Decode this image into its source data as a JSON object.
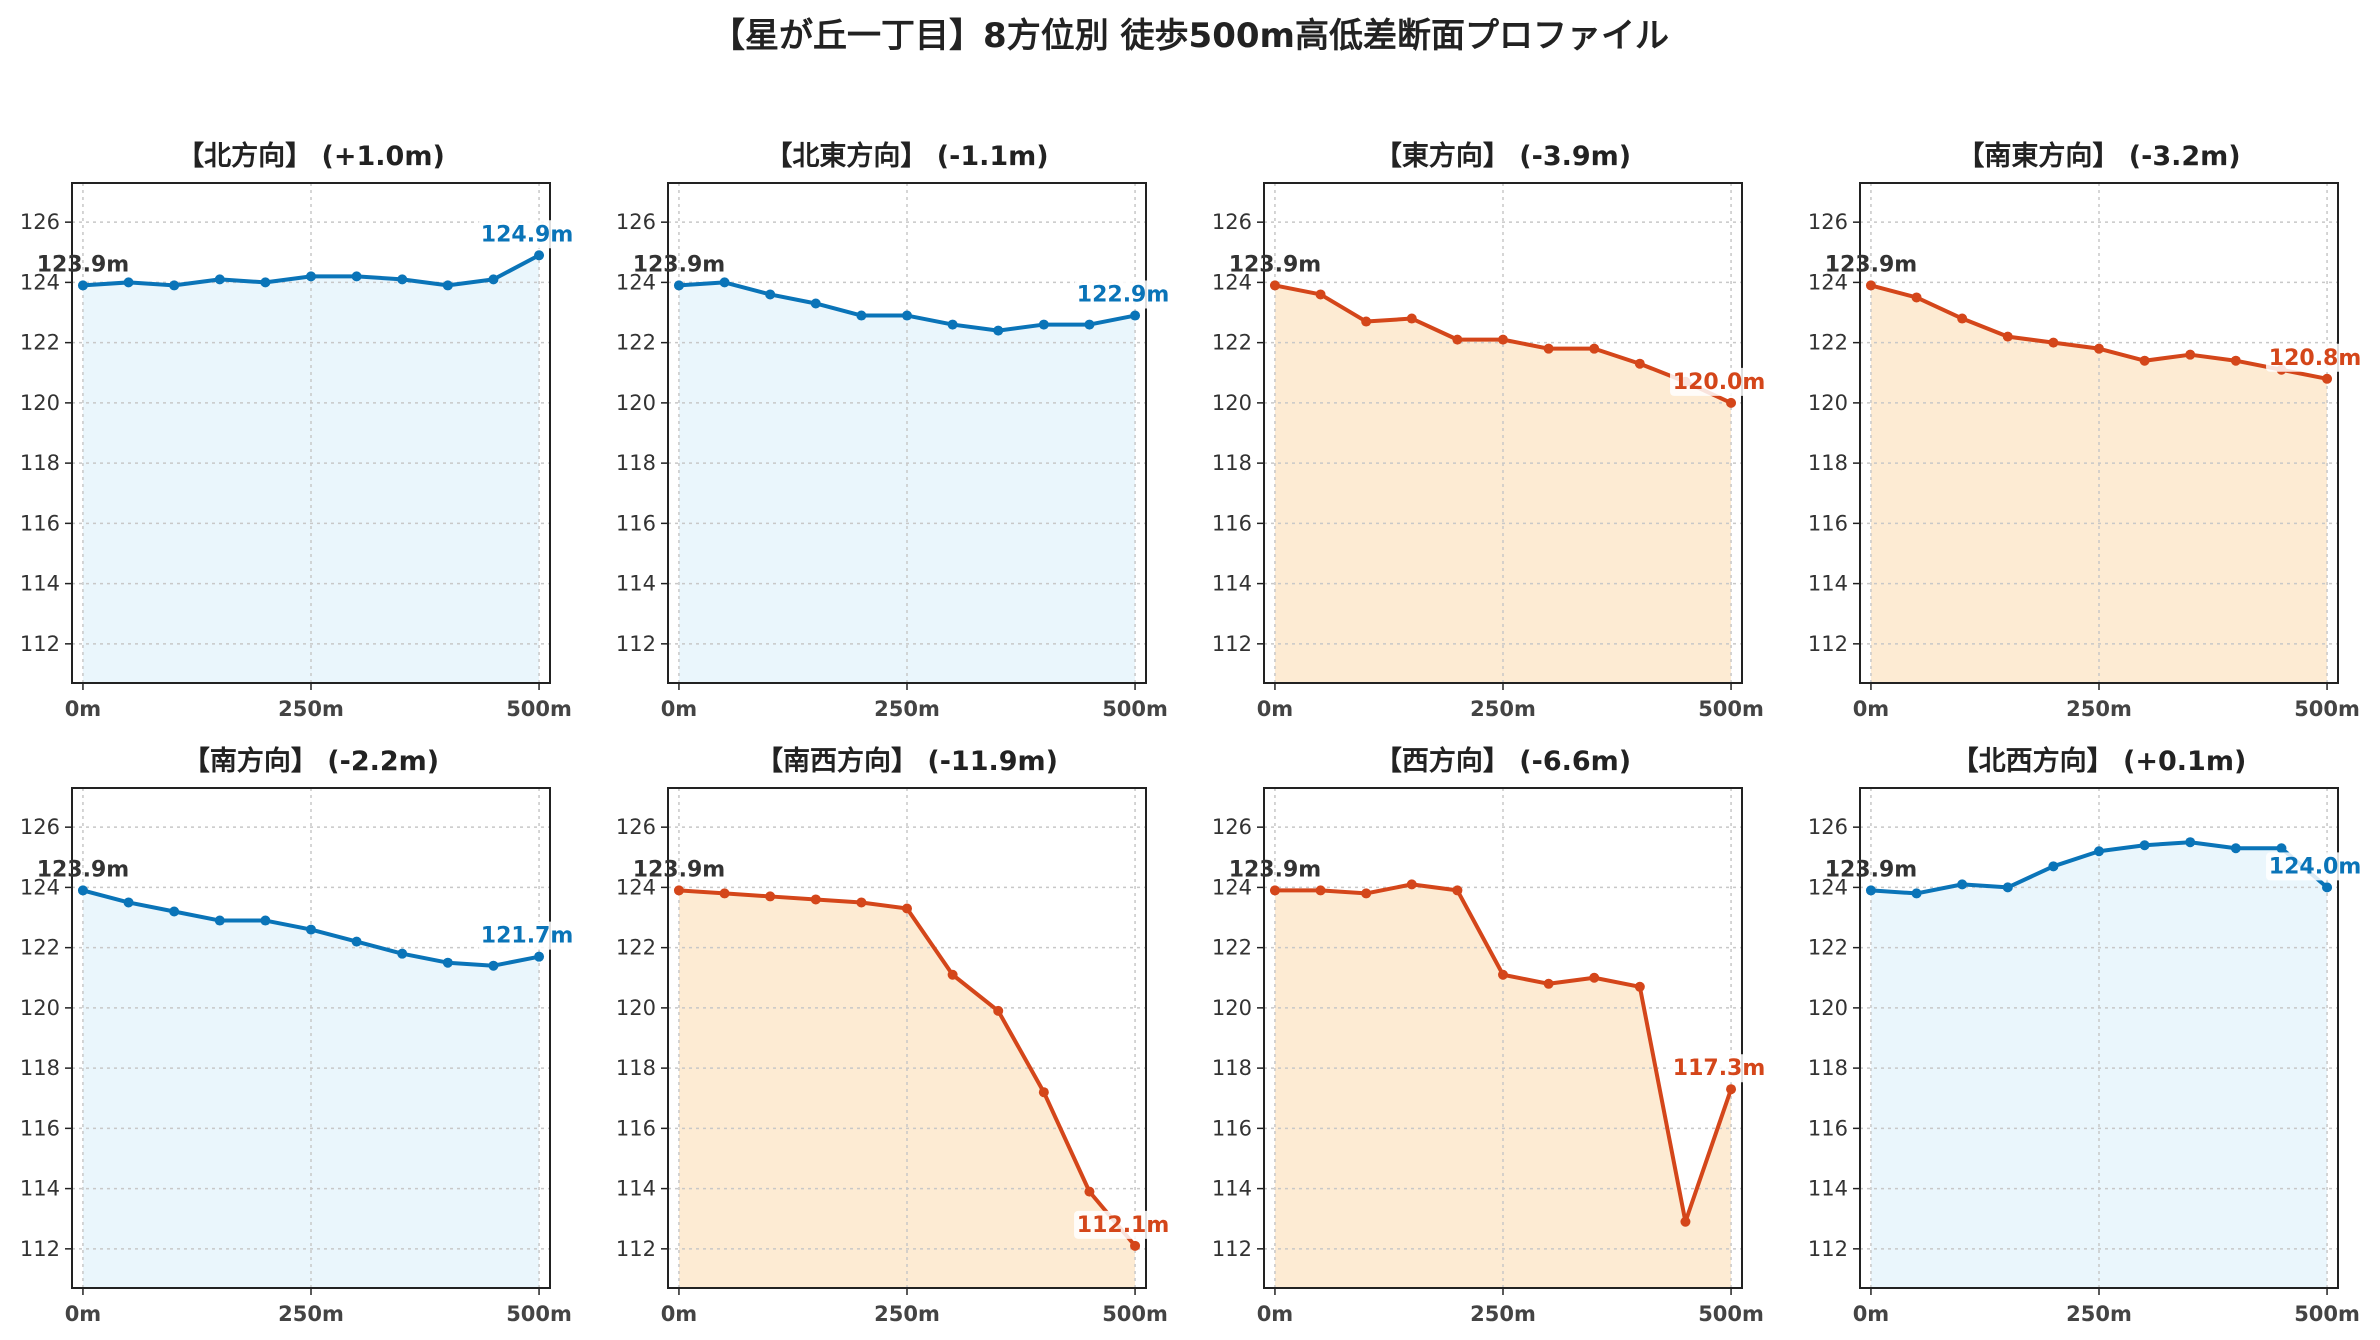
{
  "title": "【星が丘一丁目】8方位別 徒歩500m高低差断面プロファイル",
  "colors": {
    "up_line": "#0a74b8",
    "up_fill": "#eaf6fc",
    "down_line": "#d4461a",
    "down_fill": "#fdebd3",
    "grid": "#c8c8c8",
    "start_label": "#333333"
  },
  "chart_data": [
    {
      "type": "area",
      "title": "【北方向】 (+1.0m)",
      "x": [
        0,
        50,
        100,
        150,
        200,
        250,
        300,
        350,
        400,
        450,
        500
      ],
      "y": [
        123.9,
        124.0,
        123.9,
        124.1,
        124.0,
        124.2,
        124.2,
        124.1,
        123.9,
        124.1,
        124.9
      ],
      "xticks": [
        "0m",
        "250m",
        "500m"
      ],
      "yticks": [
        112,
        114,
        116,
        118,
        120,
        122,
        124,
        126
      ],
      "xlim": [
        -12,
        512
      ],
      "ylim": [
        110.7,
        127.3
      ],
      "grid": true,
      "trend": "up",
      "start_label": "123.9m",
      "end_label": "124.9m"
    },
    {
      "type": "area",
      "title": "【北東方向】 (-1.1m)",
      "x": [
        0,
        50,
        100,
        150,
        200,
        250,
        300,
        350,
        400,
        450,
        500
      ],
      "y": [
        123.9,
        124.0,
        123.6,
        123.3,
        122.9,
        122.9,
        122.6,
        122.4,
        122.6,
        122.6,
        122.9
      ],
      "xticks": [
        "0m",
        "250m",
        "500m"
      ],
      "yticks": [
        112,
        114,
        116,
        118,
        120,
        122,
        124,
        126
      ],
      "xlim": [
        -12,
        512
      ],
      "ylim": [
        110.7,
        127.3
      ],
      "grid": true,
      "trend": "up",
      "start_label": "123.9m",
      "end_label": "122.9m"
    },
    {
      "type": "area",
      "title": "【東方向】 (-3.9m)",
      "x": [
        0,
        50,
        100,
        150,
        200,
        250,
        300,
        350,
        400,
        450,
        500
      ],
      "y": [
        123.9,
        123.6,
        122.7,
        122.8,
        122.1,
        122.1,
        121.8,
        121.8,
        121.3,
        120.7,
        120.0
      ],
      "xticks": [
        "0m",
        "250m",
        "500m"
      ],
      "yticks": [
        112,
        114,
        116,
        118,
        120,
        122,
        124,
        126
      ],
      "xlim": [
        -12,
        512
      ],
      "ylim": [
        110.7,
        127.3
      ],
      "grid": true,
      "trend": "down",
      "start_label": "123.9m",
      "end_label": "120.0m"
    },
    {
      "type": "area",
      "title": "【南東方向】 (-3.2m)",
      "x": [
        0,
        50,
        100,
        150,
        200,
        250,
        300,
        350,
        400,
        450,
        500
      ],
      "y": [
        123.9,
        123.5,
        122.8,
        122.2,
        122.0,
        121.8,
        121.4,
        121.6,
        121.4,
        121.1,
        120.8
      ],
      "xticks": [
        "0m",
        "250m",
        "500m"
      ],
      "yticks": [
        112,
        114,
        116,
        118,
        120,
        122,
        124,
        126
      ],
      "xlim": [
        -12,
        512
      ],
      "ylim": [
        110.7,
        127.3
      ],
      "grid": true,
      "trend": "down",
      "start_label": "123.9m",
      "end_label": "120.8m"
    },
    {
      "type": "area",
      "title": "【南方向】 (-2.2m)",
      "x": [
        0,
        50,
        100,
        150,
        200,
        250,
        300,
        350,
        400,
        450,
        500
      ],
      "y": [
        123.9,
        123.5,
        123.2,
        122.9,
        122.9,
        122.6,
        122.2,
        121.8,
        121.5,
        121.4,
        121.7
      ],
      "xticks": [
        "0m",
        "250m",
        "500m"
      ],
      "yticks": [
        112,
        114,
        116,
        118,
        120,
        122,
        124,
        126
      ],
      "xlim": [
        -12,
        512
      ],
      "ylim": [
        110.7,
        127.3
      ],
      "grid": true,
      "trend": "up",
      "start_label": "123.9m",
      "end_label": "121.7m"
    },
    {
      "type": "area",
      "title": "【南西方向】 (-11.9m)",
      "x": [
        0,
        50,
        100,
        150,
        200,
        250,
        300,
        350,
        400,
        450,
        500
      ],
      "y": [
        123.9,
        123.8,
        123.7,
        123.6,
        123.5,
        123.3,
        121.1,
        119.9,
        117.2,
        113.9,
        112.1
      ],
      "xticks": [
        "0m",
        "250m",
        "500m"
      ],
      "yticks": [
        112,
        114,
        116,
        118,
        120,
        122,
        124,
        126
      ],
      "xlim": [
        -12,
        512
      ],
      "ylim": [
        110.7,
        127.3
      ],
      "grid": true,
      "trend": "down",
      "start_label": "123.9m",
      "end_label": "112.1m"
    },
    {
      "type": "area",
      "title": "【西方向】 (-6.6m)",
      "x": [
        0,
        50,
        100,
        150,
        200,
        250,
        300,
        350,
        400,
        450,
        500
      ],
      "y": [
        123.9,
        123.9,
        123.8,
        124.1,
        123.9,
        121.1,
        120.8,
        121.0,
        120.7,
        112.9,
        117.3
      ],
      "xticks": [
        "0m",
        "250m",
        "500m"
      ],
      "yticks": [
        112,
        114,
        116,
        118,
        120,
        122,
        124,
        126
      ],
      "xlim": [
        -12,
        512
      ],
      "ylim": [
        110.7,
        127.3
      ],
      "grid": true,
      "trend": "down",
      "start_label": "123.9m",
      "end_label": "117.3m"
    },
    {
      "type": "area",
      "title": "【北西方向】 (+0.1m)",
      "x": [
        0,
        50,
        100,
        150,
        200,
        250,
        300,
        350,
        400,
        450,
        500
      ],
      "y": [
        123.9,
        123.8,
        124.1,
        124.0,
        124.7,
        125.2,
        125.4,
        125.5,
        125.3,
        125.3,
        124.0
      ],
      "xticks": [
        "0m",
        "250m",
        "500m"
      ],
      "yticks": [
        112,
        114,
        116,
        118,
        120,
        122,
        124,
        126
      ],
      "xlim": [
        -12,
        512
      ],
      "ylim": [
        110.7,
        127.3
      ],
      "grid": true,
      "trend": "up",
      "start_label": "123.9m",
      "end_label": "124.0m"
    }
  ]
}
